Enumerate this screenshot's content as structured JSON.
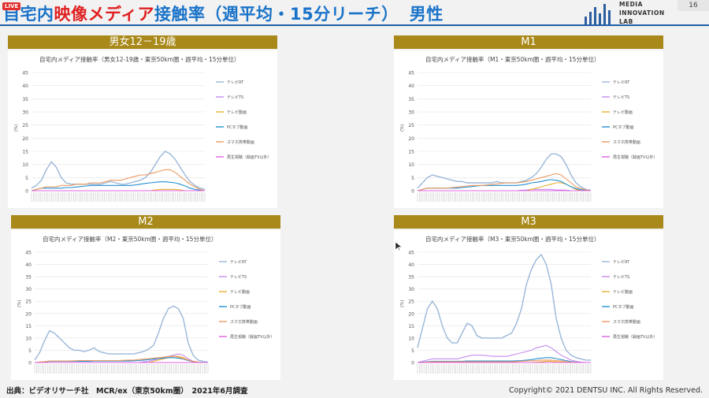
{
  "header": {
    "live_badge": "LIVE",
    "title_part1": "自宅内",
    "title_part2": "映像メディア",
    "title_part3": "接触率（週平均・15分リーチ）",
    "title_part4": "男性",
    "logo_line1": "MEDIA",
    "logo_line2": "INNOVATION",
    "logo_line3": "LAB",
    "page_number": "16"
  },
  "footer": {
    "source": "出典：ビデオリサーチ社　MCR/ex（東京50km圏）　2021年6月調査",
    "copyright": "Copyright© 2021 DENTSU INC. All Rights Reserved."
  },
  "colors": {
    "title_blue": "#1a73c9",
    "title_red": "#e02020",
    "panel_gold": "#a8891a",
    "series": [
      "#9ab7d8",
      "#c38cf0",
      "#e8b030",
      "#2590d0",
      "#ec9a60",
      "#e060e0"
    ]
  },
  "chart_data": [
    {
      "type": "line",
      "panel_title": "男女12－19歳",
      "title": "自宅内メディア接触率（男女12-19歳・東京50km圏・週平均・15分単位）",
      "ylabel": "(%)",
      "ylim": [
        0,
        45
      ],
      "yticks": [
        0,
        5,
        10,
        15,
        20,
        25,
        30,
        35,
        40,
        45
      ],
      "x_period": "5:00–28:45, 15-minute slots",
      "legend_position": "right",
      "series": [
        {
          "name": "テレビRT",
          "values": [
            1,
            2,
            4,
            8,
            11,
            9,
            5,
            3,
            2.5,
            2.5,
            2.5,
            2.5,
            2.5,
            2.5,
            2.5,
            3,
            3.5,
            3,
            2.5,
            2.5,
            3,
            3.5,
            4,
            5,
            7,
            10,
            13,
            15,
            14,
            12,
            9,
            6,
            3.5,
            2,
            1,
            0.5
          ]
        },
        {
          "name": "テレビTS",
          "values": [
            0,
            0,
            0,
            0,
            0,
            0,
            0,
            0,
            0,
            0,
            0,
            0,
            0,
            0,
            0,
            0,
            0,
            0,
            0,
            0,
            0,
            0,
            0,
            0,
            0,
            0,
            0,
            0,
            0,
            0,
            0,
            0,
            0,
            0,
            0,
            0
          ]
        },
        {
          "name": "テレビ動画",
          "values": [
            0,
            0,
            0,
            0,
            0,
            0,
            0,
            0,
            0,
            0,
            0,
            0,
            0,
            0,
            0,
            0,
            0,
            0,
            0,
            0,
            0,
            0,
            0,
            0,
            0,
            0.3,
            0.5,
            0.5,
            0.5,
            0.5,
            0.3,
            0,
            0,
            0,
            0,
            0
          ]
        },
        {
          "name": "PCタブ動画",
          "values": [
            0,
            0.5,
            1,
            1,
            1,
            1,
            1,
            1.2,
            1.2,
            1.4,
            1.6,
            1.8,
            2,
            2,
            2,
            2,
            2,
            2,
            2,
            2,
            2,
            2.2,
            2.5,
            2.8,
            3,
            3.2,
            3.4,
            3.4,
            3.2,
            3,
            2.5,
            1.8,
            1,
            0.5,
            0.2,
            0
          ]
        },
        {
          "name": "スマホ携帯動画",
          "values": [
            0,
            0.5,
            1,
            1.5,
            1.5,
            1.5,
            2,
            2,
            2,
            2.5,
            2.5,
            2.5,
            3,
            3,
            3,
            3.5,
            4,
            4,
            4,
            4.5,
            5,
            5.5,
            6,
            6,
            6.5,
            7,
            7.5,
            8,
            8,
            7,
            5.5,
            4,
            2.5,
            1.5,
            0.5,
            0
          ]
        },
        {
          "name": "再生視聴（録画TV以外）",
          "values": [
            0,
            0,
            0,
            0,
            0,
            0,
            0,
            0,
            0,
            0,
            0,
            0,
            0,
            0,
            0,
            0,
            0,
            0,
            0,
            0,
            0,
            0,
            0,
            0,
            0,
            0,
            0,
            0,
            0,
            0,
            0,
            0,
            0,
            0,
            0,
            0
          ]
        }
      ]
    },
    {
      "type": "line",
      "panel_title": "M1",
      "title": "自宅内メディア接触率（M1・東京50km圏・週平均・15分単位）",
      "ylabel": "(%)",
      "ylim": [
        0,
        45
      ],
      "yticks": [
        0,
        5,
        10,
        15,
        20,
        25,
        30,
        35,
        40,
        45
      ],
      "x_period": "5:00–28:45, 15-minute slots",
      "legend_position": "right",
      "series": [
        {
          "name": "テレビRT",
          "values": [
            1,
            3,
            5,
            6,
            5.5,
            5,
            4.5,
            4,
            3.5,
            3.5,
            3,
            3,
            3,
            3,
            3,
            3,
            3.5,
            3,
            3,
            3,
            3,
            3.5,
            4,
            5,
            6.5,
            9,
            12,
            14,
            14,
            13,
            10,
            6,
            3,
            1.5,
            0.5,
            0.2
          ]
        },
        {
          "name": "テレビTS",
          "values": [
            0,
            0,
            0,
            0,
            0,
            0,
            0,
            0,
            0,
            0,
            0,
            0,
            0,
            0,
            0,
            0,
            0,
            0,
            0,
            0,
            0,
            0.2,
            0.3,
            0.5,
            0.5,
            0.5,
            0.5,
            0.5,
            0.3,
            0.3,
            0.2,
            0,
            0,
            0,
            0,
            0
          ]
        },
        {
          "name": "テレビ動画",
          "values": [
            0,
            0,
            0,
            0,
            0,
            0,
            0,
            0,
            0,
            0,
            0,
            0,
            0,
            0,
            0,
            0,
            0,
            0,
            0,
            0,
            0,
            0,
            0,
            0.5,
            1,
            1.5,
            2,
            2.5,
            3,
            3,
            2.5,
            1.5,
            0.5,
            0,
            0,
            0
          ]
        },
        {
          "name": "PCタブ動画",
          "values": [
            0,
            0.5,
            1,
            1,
            1,
            1,
            1,
            1,
            1,
            1.2,
            1.4,
            1.6,
            1.8,
            2,
            2,
            2,
            2,
            2,
            2,
            2,
            2,
            2.2,
            2.5,
            3,
            3.2,
            3.5,
            4,
            4.2,
            4,
            3.5,
            2.5,
            1.5,
            0.8,
            0.4,
            0.1,
            0
          ]
        },
        {
          "name": "スマホ携帯動画",
          "values": [
            0,
            0.5,
            1,
            1,
            1,
            1,
            1,
            1.2,
            1.4,
            1.6,
            1.8,
            2,
            2,
            2,
            2.2,
            2.4,
            2.6,
            2.8,
            3,
            3,
            3,
            3.2,
            3.5,
            4,
            4.5,
            5,
            5.5,
            6,
            6.5,
            6,
            4.5,
            3,
            1.5,
            0.8,
            0.3,
            0
          ]
        },
        {
          "name": "再生視聴（録画TV以外）",
          "values": [
            0,
            0,
            0,
            0,
            0,
            0,
            0,
            0,
            0,
            0,
            0,
            0,
            0,
            0,
            0,
            0,
            0,
            0,
            0,
            0,
            0,
            0,
            0,
            0,
            0,
            0,
            0,
            0,
            0,
            0,
            0,
            0,
            0,
            0,
            0,
            0
          ]
        }
      ]
    },
    {
      "type": "line",
      "panel_title": "M2",
      "title": "自宅内メディア接触率（M2・東京50km圏・週平均・15分単位）",
      "ylabel": "(%)",
      "ylim": [
        0,
        45
      ],
      "yticks": [
        0,
        5,
        10,
        15,
        20,
        25,
        30,
        35,
        40,
        45
      ],
      "x_period": "5:00–28:45, 15-minute slots",
      "legend_position": "right",
      "series": [
        {
          "name": "テレビRT",
          "values": [
            1,
            4,
            9,
            13,
            12,
            10,
            8,
            6,
            5,
            5,
            4.5,
            5,
            6,
            4.5,
            4,
            3.5,
            3.5,
            3.5,
            3.5,
            3.5,
            3.5,
            4,
            4.5,
            5.5,
            7,
            12,
            18,
            22,
            23,
            22,
            18,
            8,
            3,
            1,
            0.5,
            0.2
          ]
        },
        {
          "name": "テレビTS",
          "values": [
            0,
            0,
            0,
            0,
            0,
            0,
            0,
            0,
            0,
            0,
            0,
            0,
            0,
            0,
            0,
            0,
            0,
            0,
            0,
            0,
            0,
            0,
            0.3,
            0.5,
            1,
            1.5,
            2,
            2.5,
            3,
            3.5,
            3,
            1.5,
            0.5,
            0.2,
            0,
            0
          ]
        },
        {
          "name": "テレビ動画",
          "values": [
            0,
            0,
            0,
            0,
            0,
            0,
            0,
            0,
            0,
            0,
            0,
            0,
            0,
            0,
            0,
            0,
            0,
            0,
            0,
            0,
            0,
            0,
            0,
            0,
            0.5,
            1,
            1.5,
            2,
            2.5,
            2.5,
            2,
            1,
            0.3,
            0,
            0,
            0
          ]
        },
        {
          "name": "PCタブ動画",
          "values": [
            0,
            0.2,
            0.3,
            0.5,
            0.5,
            0.5,
            0.5,
            0.5,
            0.5,
            0.5,
            0.5,
            0.5,
            0.6,
            0.6,
            0.6,
            0.6,
            0.6,
            0.6,
            0.6,
            0.6,
            0.7,
            0.8,
            1,
            1.2,
            1.4,
            1.6,
            1.8,
            2,
            2,
            1.8,
            1.4,
            0.8,
            0.4,
            0.2,
            0,
            0
          ]
        },
        {
          "name": "スマホ携帯動画",
          "values": [
            0,
            0.2,
            0.4,
            0.6,
            0.6,
            0.6,
            0.6,
            0.6,
            0.7,
            0.8,
            0.8,
            0.8,
            0.8,
            0.8,
            0.8,
            0.8,
            0.8,
            0.8,
            0.9,
            1,
            1,
            1.2,
            1.4,
            1.6,
            1.8,
            2,
            2.2,
            2.5,
            2.5,
            2.2,
            1.6,
            1,
            0.5,
            0.2,
            0,
            0
          ]
        },
        {
          "name": "再生視聴（録画TV以外）",
          "values": [
            0,
            0,
            0,
            0,
            0,
            0,
            0,
            0,
            0,
            0,
            0,
            0,
            0,
            0,
            0,
            0,
            0,
            0,
            0,
            0,
            0,
            0,
            0,
            0,
            0,
            0,
            0,
            0,
            0,
            0,
            0,
            0,
            0,
            0,
            0,
            0
          ]
        }
      ]
    },
    {
      "type": "line",
      "panel_title": "M3",
      "title": "自宅内メディア接触率（M3・東京50km圏・週平均・15分単位）",
      "ylabel": "(%)",
      "ylim": [
        0,
        45
      ],
      "yticks": [
        0,
        5,
        10,
        15,
        20,
        25,
        30,
        35,
        40,
        45
      ],
      "x_period": "5:00–28:45, 15-minute slots",
      "legend_position": "right",
      "series": [
        {
          "name": "テレビRT",
          "values": [
            6,
            14,
            22,
            25,
            22,
            15,
            10,
            8,
            8,
            12,
            16,
            15,
            11,
            10,
            10,
            10,
            10,
            10,
            11,
            12,
            16,
            22,
            32,
            38,
            42,
            44,
            40,
            32,
            18,
            10,
            5,
            3,
            2,
            1.5,
            1,
            1
          ]
        },
        {
          "name": "テレビTS",
          "values": [
            0,
            0.5,
            1,
            1.5,
            1.5,
            1.5,
            1.5,
            1.5,
            1.5,
            2,
            2.5,
            3,
            3,
            3,
            2.8,
            2.6,
            2.5,
            2.5,
            2.5,
            3,
            3.5,
            4,
            4.5,
            5,
            6,
            6.5,
            7,
            6,
            4.5,
            3,
            2,
            1,
            0.5,
            0.2,
            0,
            0
          ]
        },
        {
          "name": "テレビ動画",
          "values": [
            0,
            0,
            0,
            0,
            0,
            0,
            0,
            0,
            0,
            0,
            0,
            0,
            0,
            0,
            0,
            0,
            0,
            0,
            0,
            0,
            0,
            0,
            0,
            0,
            0.2,
            0.3,
            0.5,
            0.5,
            0.3,
            0.2,
            0,
            0,
            0,
            0,
            0,
            0
          ]
        },
        {
          "name": "PCタブ動画",
          "values": [
            0,
            0.2,
            0.3,
            0.5,
            0.5,
            0.5,
            0.5,
            0.5,
            0.5,
            0.5,
            0.6,
            0.6,
            0.6,
            0.6,
            0.6,
            0.6,
            0.6,
            0.6,
            0.6,
            0.6,
            0.7,
            0.8,
            1,
            1.2,
            1.5,
            1.8,
            2,
            2,
            1.6,
            1.2,
            0.8,
            0.4,
            0.2,
            0,
            0,
            0
          ]
        },
        {
          "name": "スマホ携帯動画",
          "values": [
            0,
            0.1,
            0.2,
            0.3,
            0.3,
            0.3,
            0.3,
            0.3,
            0.3,
            0.3,
            0.3,
            0.3,
            0.3,
            0.3,
            0.3,
            0.3,
            0.3,
            0.3,
            0.3,
            0.3,
            0.4,
            0.5,
            0.6,
            0.7,
            0.8,
            1,
            1,
            1,
            0.8,
            0.6,
            0.4,
            0.2,
            0.1,
            0,
            0,
            0
          ]
        },
        {
          "name": "再生視聴（録画TV以外）",
          "values": [
            0,
            0,
            0,
            0,
            0,
            0,
            0,
            0,
            0,
            0,
            0,
            0,
            0,
            0,
            0,
            0,
            0,
            0,
            0,
            0,
            0,
            0,
            0,
            0,
            0,
            0,
            0,
            0,
            0,
            0,
            0,
            0,
            0,
            0,
            0,
            0
          ]
        }
      ]
    }
  ]
}
